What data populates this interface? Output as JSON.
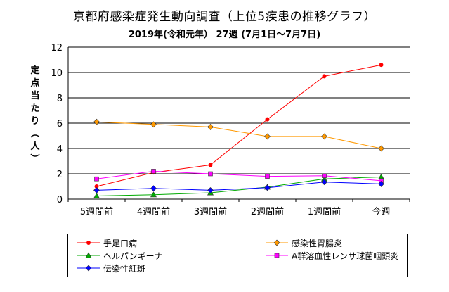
{
  "title": "京都府感染症発生動向調査（上位5疾患の推移グラフ）",
  "subtitle": "2019年(令和元年）  27週 (7月1日～7月7日)",
  "chart_data": {
    "type": "line",
    "categories": [
      "5週間前",
      "4週間前",
      "3週間前",
      "2週間前",
      "1週間前",
      "今週"
    ],
    "ylabel": "定点当たり(人)",
    "ylim": [
      0,
      12
    ],
    "yticks": [
      "0",
      "2",
      "4",
      "6",
      "8",
      "10",
      "12"
    ],
    "grid": true,
    "legend_position": "bottom",
    "series": [
      {
        "name": "手足口病",
        "color": "#ff0000",
        "marker": "circle",
        "values": [
          1.0,
          2.1,
          2.7,
          6.3,
          9.7,
          10.6
        ]
      },
      {
        "name": "感染性胃腸炎",
        "color": "#ff9900",
        "marker": "diamond",
        "values": [
          6.1,
          5.9,
          5.7,
          4.95,
          4.95,
          4.0
        ]
      },
      {
        "name": "ヘルパンギーナ",
        "color": "#00aa00",
        "marker": "triangle",
        "values": [
          0.25,
          0.35,
          0.5,
          0.95,
          1.6,
          1.75
        ]
      },
      {
        "name": "A群溶血性レンサ球菌咽頭炎",
        "color": "#ff00ff",
        "marker": "square",
        "values": [
          1.6,
          2.2,
          2.0,
          1.8,
          1.85,
          1.45
        ]
      },
      {
        "name": "伝染性紅斑",
        "color": "#0000ff",
        "marker": "diamond",
        "values": [
          0.7,
          0.85,
          0.7,
          0.9,
          1.35,
          1.2
        ]
      }
    ]
  }
}
